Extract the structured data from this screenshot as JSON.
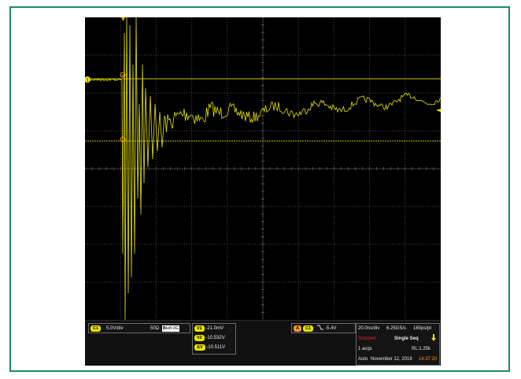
{
  "theme": {
    "trace": "#e8e400",
    "grid": "#5a5a5a",
    "cursor": "#c8c400",
    "bg": "#000000",
    "frame": "#1d8a63",
    "stopped": "#e02020",
    "time": "#ff9a1a"
  },
  "channel": {
    "badge": "C1",
    "volts_div": "5.0V/div",
    "impedance": "50Ω",
    "bw_mark": "B",
    "bandwidth": "8.0G"
  },
  "cursors": [
    {
      "badge": "V1",
      "value": "-21.0mV"
    },
    {
      "badge": "V2",
      "value": "-10.532V"
    },
    {
      "badge": "ΔV",
      "value": "-10.511V"
    }
  ],
  "trigger": {
    "mode_badge": "A",
    "source_badge": "C1",
    "slope_icon": "falling-edge-icon",
    "level": "-5.4V"
  },
  "acquisition": {
    "timebase": "20.0ns/div",
    "sample_rate": "6.25GS/s",
    "resolution": "160ps/pt",
    "status": "Stopped",
    "seq_mode": "Single Seq",
    "acqs": "1 acqs",
    "record_length": "RL:1.25k",
    "trigger_mode": "Auto",
    "date": "November 12, 2019",
    "time": "14:37:20"
  },
  "markers": {
    "channel_marker": "1",
    "cursor_a": "a",
    "cursor_b": "b"
  }
}
